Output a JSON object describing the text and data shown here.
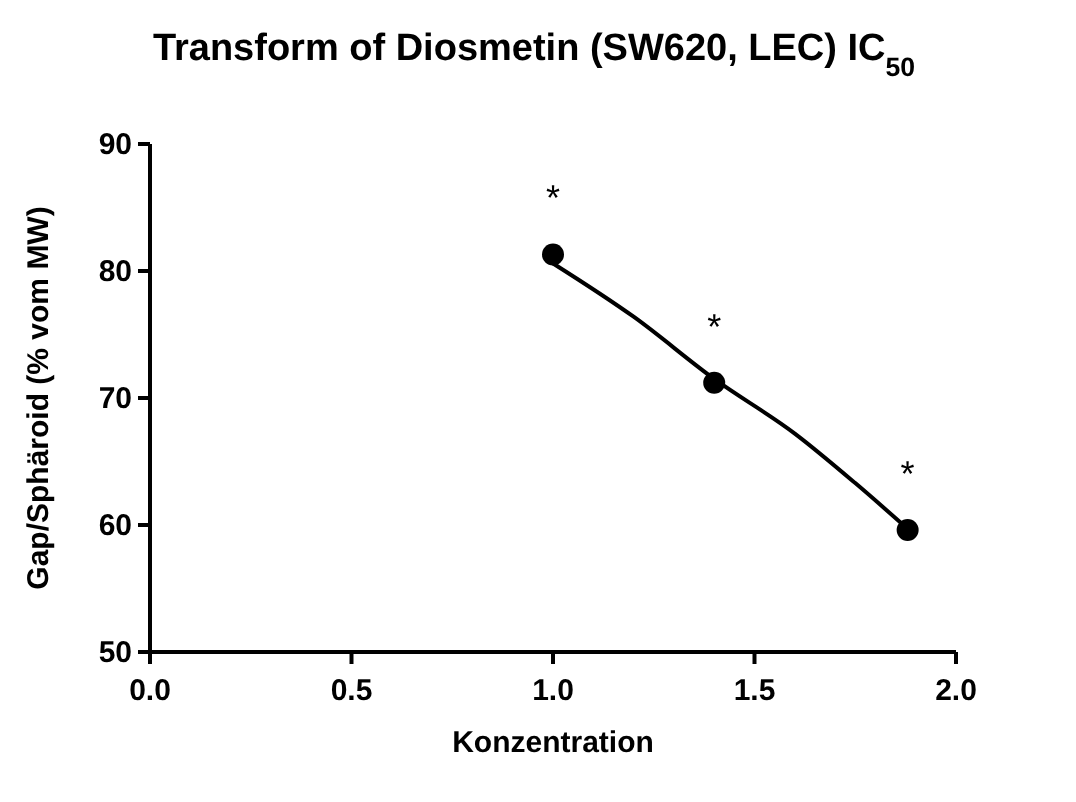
{
  "chart_data": {
    "type": "scatter",
    "title": "Transform of Diosmetin (SW620, LEC) IC$_{50}$",
    "xlabel": "Konzentration",
    "ylabel": "Gap/Sphäroid (% vom MW)",
    "xlim": [
      0,
      2
    ],
    "xticks": [
      {
        "value": 0,
        "label": "0.0"
      },
      {
        "value": 0.5,
        "label": "0.5"
      },
      {
        "value": 1,
        "label": "1.0"
      },
      {
        "value": 1.5,
        "label": "1.5"
      },
      {
        "value": 2,
        "label": "2.0"
      }
    ],
    "ylim": [
      50,
      90
    ],
    "yticks": [
      50,
      60,
      70,
      80,
      90
    ],
    "grid": false,
    "series": [
      {
        "color": "#000000",
        "marker": "circle",
        "x": [
          1.0,
          1.4,
          1.88
        ],
        "values": [
          81.3,
          71.2,
          59.6
        ]
      },
      {
        "type": "line",
        "color": "#000000",
        "line_style": "solid",
        "x": [
          1.0,
          1.2,
          1.4,
          1.6,
          1.75,
          1.88
        ],
        "values": [
          80.6,
          76.4,
          71.5,
          67.2,
          63.3,
          59.7
        ]
      }
    ],
    "annotations": [
      {
        "text": "*",
        "x": 1.0,
        "y": 81.3
      },
      {
        "text": "*",
        "x": 1.4,
        "y": 71.2
      },
      {
        "text": "*",
        "x": 1.88,
        "y": 59.6
      }
    ]
  }
}
